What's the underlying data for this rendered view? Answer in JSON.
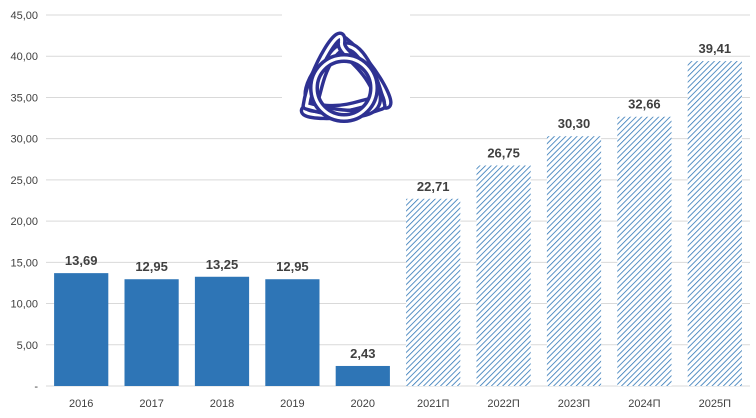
{
  "chart_data": {
    "type": "bar",
    "categories": [
      "2016",
      "2017",
      "2018",
      "2019",
      "2020",
      "2021П",
      "2022П",
      "2023П",
      "2024П",
      "2025П"
    ],
    "values": [
      13.69,
      12.95,
      13.25,
      12.95,
      2.43,
      22.71,
      26.75,
      30.3,
      32.66,
      39.41
    ],
    "value_labels": [
      "13,69",
      "12,95",
      "13,25",
      "12,95",
      "2,43",
      "22,71",
      "26,75",
      "30,30",
      "32,66",
      "39,41"
    ],
    "forecast": [
      false,
      false,
      false,
      false,
      false,
      true,
      true,
      true,
      true,
      true
    ],
    "y_ticks": [
      0,
      5,
      10,
      15,
      20,
      25,
      30,
      35,
      40,
      45
    ],
    "y_tick_labels": [
      "-",
      "5,00",
      "10,00",
      "15,00",
      "20,00",
      "25,00",
      "30,00",
      "35,00",
      "40,00",
      "45,00"
    ],
    "ylim": [
      0,
      45
    ],
    "grid": true,
    "title": "",
    "xlabel": "",
    "ylabel": "",
    "colors": {
      "actual": "#2e75b6",
      "forecast": "#2e75b6",
      "logo": "#2e3192"
    }
  },
  "logo": {
    "icon": "triquetra-logo-icon"
  }
}
